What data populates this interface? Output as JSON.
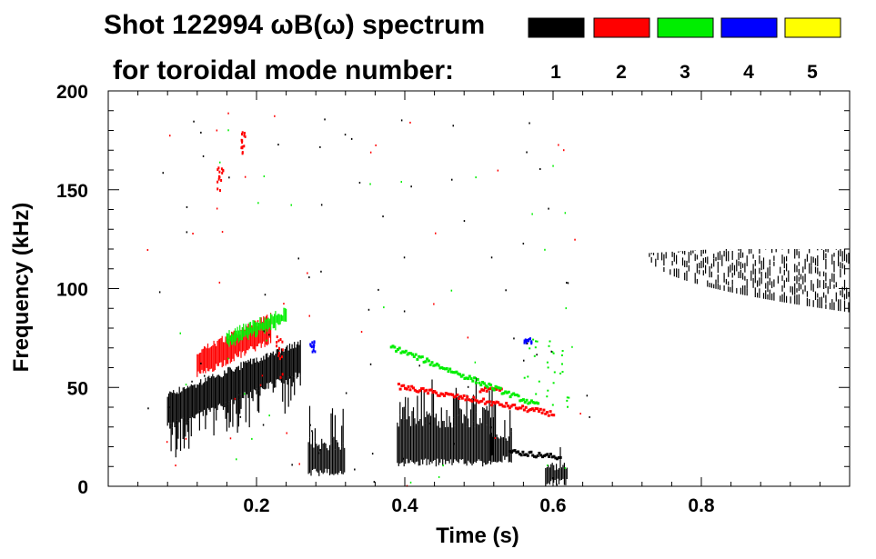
{
  "chart_data": {
    "type": "heatmap",
    "title_line1": "Shot 122994 ωB(ω) spectrum",
    "title_line2": "for toroidal mode number:",
    "xlabel": "Time (s)",
    "ylabel": "Frequency (kHz)",
    "xlim": [
      0.0,
      1.0
    ],
    "ylim": [
      0,
      200
    ],
    "xticks": [
      0.2,
      0.4,
      0.6,
      0.8
    ],
    "xtick_labels": [
      "0.2",
      "0.4",
      "0.6",
      "0.8"
    ],
    "yticks": [
      0,
      50,
      100,
      150,
      200
    ],
    "ytick_labels": [
      "0",
      "50",
      "100",
      "150",
      "200"
    ],
    "legend": [
      {
        "label": "1",
        "color": "#000000"
      },
      {
        "label": "2",
        "color": "#ff0000"
      },
      {
        "label": "3",
        "color": "#00ee00"
      },
      {
        "label": "4",
        "color": "#0000ff"
      },
      {
        "label": "5",
        "color": "#ffff00"
      }
    ],
    "features": [
      {
        "mode": "1",
        "kind": "sweep",
        "t": [
          0.08,
          0.26
        ],
        "f0": [
          38,
          65
        ],
        "width": 16
      },
      {
        "mode": "1",
        "kind": "burst",
        "t": [
          0.27,
          0.32
        ],
        "f": [
          5,
          25
        ]
      },
      {
        "mode": "1",
        "kind": "burst",
        "t": [
          0.39,
          0.52
        ],
        "f": [
          10,
          40
        ]
      },
      {
        "mode": "1",
        "kind": "burst",
        "t": [
          0.515,
          0.545
        ],
        "f": [
          12,
          28
        ]
      },
      {
        "mode": "1",
        "kind": "line",
        "t": [
          0.54,
          0.61
        ],
        "f": [
          17,
          14
        ]
      },
      {
        "mode": "1",
        "kind": "burst",
        "t": [
          0.59,
          0.62
        ],
        "f": [
          0,
          12
        ]
      },
      {
        "mode": "1",
        "kind": "band",
        "t": [
          0.73,
          1.0
        ],
        "f_low": [
          116,
          88
        ],
        "f_high": [
          118,
          120
        ]
      },
      {
        "mode": "2",
        "kind": "sweep",
        "t": [
          0.12,
          0.22
        ],
        "f0": [
          62,
          80
        ],
        "width": 12
      },
      {
        "mode": "2",
        "kind": "line",
        "t": [
          0.39,
          0.6
        ],
        "f": [
          50,
          36
        ]
      },
      {
        "mode": "2",
        "kind": "line",
        "t": [
          0.5,
          0.53
        ],
        "f": [
          48,
          48
        ]
      },
      {
        "mode": "2",
        "kind": "cluster",
        "t": [
          0.145,
          0.155
        ],
        "f": [
          150,
          162
        ]
      },
      {
        "mode": "2",
        "kind": "cluster",
        "t": [
          0.178,
          0.185
        ],
        "f": [
          168,
          180
        ]
      },
      {
        "mode": "2",
        "kind": "cluster",
        "t": [
          0.225,
          0.235
        ],
        "f": [
          55,
          78
        ]
      },
      {
        "mode": "3",
        "kind": "sweep",
        "t": [
          0.16,
          0.24
        ],
        "f0": [
          74,
          86
        ],
        "width": 6
      },
      {
        "mode": "3",
        "kind": "line",
        "t": [
          0.38,
          0.58
        ],
        "f": [
          70,
          40
        ]
      },
      {
        "mode": "3",
        "kind": "scatter",
        "t": [
          0.56,
          0.62
        ],
        "f": [
          40,
          75
        ]
      },
      {
        "mode": "4",
        "kind": "cluster",
        "t": [
          0.27,
          0.28
        ],
        "f": [
          68,
          74
        ]
      },
      {
        "mode": "4",
        "kind": "cluster",
        "t": [
          0.56,
          0.57
        ],
        "f": [
          73,
          76
        ]
      }
    ]
  }
}
